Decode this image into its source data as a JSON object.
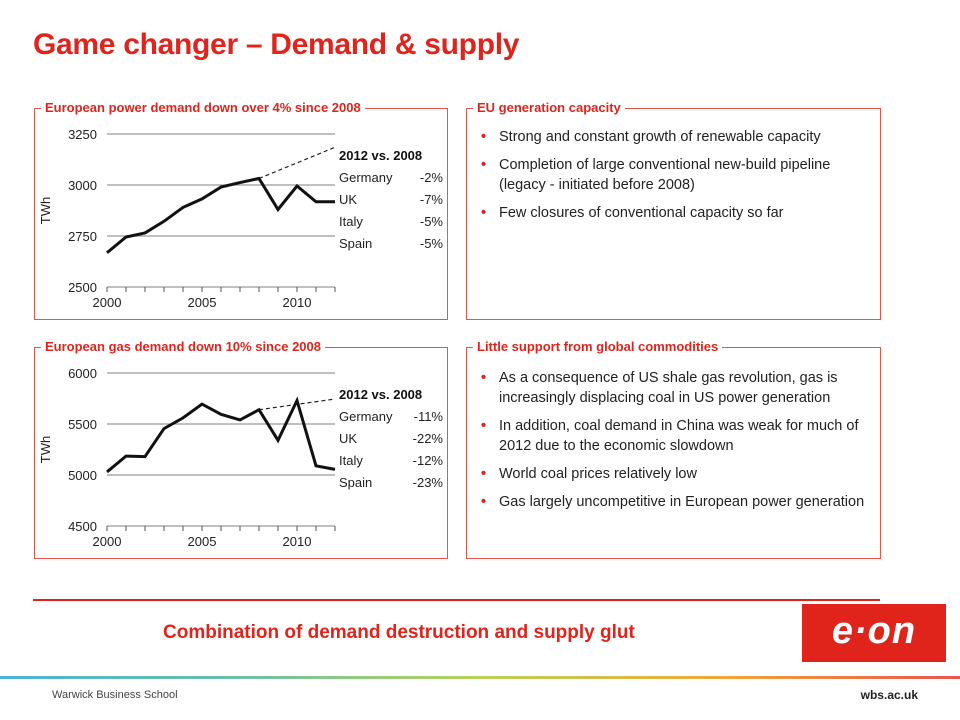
{
  "page": {
    "title": "Game changer – Demand & supply",
    "conclusion": "Combination of demand destruction and supply glut",
    "logo": "e·on",
    "footer_left": "Warwick Business School",
    "footer_right": "wbs.ac.uk"
  },
  "panels": {
    "power": {
      "title": "European power demand down over 4% since 2008"
    },
    "gas": {
      "title": "European gas demand down 10% since 2008"
    },
    "capacity": {
      "title": "EU generation capacity",
      "bullets": [
        "Strong and constant growth of renewable capacity",
        "Completion of large conventional new-build pipeline (legacy - initiated before 2008)",
        "Few closures of conventional capacity so far"
      ]
    },
    "commodities": {
      "title": "Little support from global commodities",
      "bullets": [
        "As a consequence of US shale gas revolution, gas is increasingly displacing coal in US power generation",
        "In addition, coal demand in China was weak for much of 2012 due to the economic slowdown",
        "World coal prices relatively low",
        "Gas largely uncompetitive in European power generation"
      ]
    }
  },
  "chart_data": [
    {
      "type": "line",
      "title": "European power demand down over 4% since 2008",
      "ylabel": "TWh",
      "xlabel": "",
      "x": [
        2000,
        2001,
        2002,
        2003,
        2004,
        2005,
        2006,
        2007,
        2008,
        2009,
        2010,
        2011,
        2012
      ],
      "values": [
        2668,
        2745,
        2765,
        2822,
        2890,
        2932,
        2990,
        3012,
        3032,
        2880,
        2995,
        2918,
        2918
      ],
      "trend": {
        "x": [
          2008,
          2012
        ],
        "values": [
          3032,
          3185
        ],
        "style": "dashed"
      },
      "xlim": [
        2000,
        2012
      ],
      "ylim": [
        2500,
        3250
      ],
      "xticks": [
        2000,
        2005,
        2010
      ],
      "yticks": [
        2500,
        2750,
        3000,
        3250
      ],
      "grid": true,
      "table": {
        "header": "2012 vs. 2008",
        "rows": [
          {
            "country": "Germany",
            "change": "-2%"
          },
          {
            "country": "UK",
            "change": "-7%"
          },
          {
            "country": "Italy",
            "change": "-5%"
          },
          {
            "country": "Spain",
            "change": "-5%"
          }
        ]
      }
    },
    {
      "type": "line",
      "title": "European gas demand down 10% since 2008",
      "ylabel": "TWh",
      "xlabel": "",
      "x": [
        2000,
        2001,
        2002,
        2003,
        2004,
        2005,
        2006,
        2007,
        2008,
        2009,
        2010,
        2011,
        2012
      ],
      "values": [
        5030,
        5185,
        5180,
        5455,
        5560,
        5695,
        5595,
        5540,
        5640,
        5340,
        5730,
        5090,
        5055
      ],
      "trend": {
        "x": [
          2008,
          2012
        ],
        "values": [
          5640,
          5745
        ],
        "style": "dashed"
      },
      "xlim": [
        2000,
        2012
      ],
      "ylim": [
        4500,
        6000
      ],
      "xticks": [
        2000,
        2005,
        2010
      ],
      "yticks": [
        4500,
        5000,
        5500,
        6000
      ],
      "grid": true,
      "table": {
        "header": "2012 vs. 2008",
        "rows": [
          {
            "country": "Germany",
            "change": "-11%"
          },
          {
            "country": "UK",
            "change": "-22%"
          },
          {
            "country": "Italy",
            "change": "-12%"
          },
          {
            "country": "Spain",
            "change": "-23%"
          }
        ]
      }
    }
  ]
}
